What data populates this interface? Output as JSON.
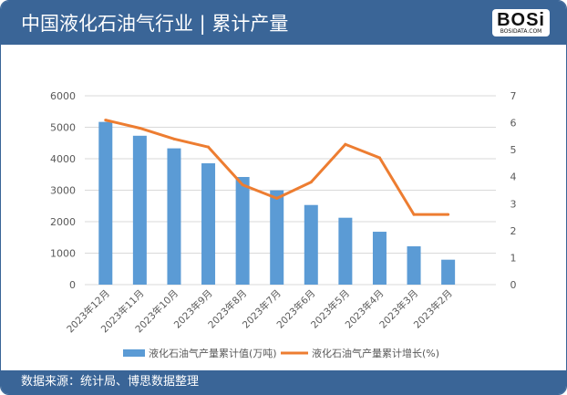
{
  "header": {
    "title": "中国液化石油气行业 | 累计产量",
    "logo_text": "BOSi",
    "logo_sub": "BOSIDATA.COM"
  },
  "footer": {
    "source": "数据来源：统计局、博思数据整理"
  },
  "chart_data": {
    "type": "bar",
    "title": "中国液化石油气行业 | 累计产量",
    "categories": [
      "2023年12月",
      "2023年11月",
      "2023年10月",
      "2023年9月",
      "2023年8月",
      "2023年7月",
      "2023年6月",
      "2023年5月",
      "2023年4月",
      "2023年3月",
      "2023年2月"
    ],
    "series": [
      {
        "name": "液化石油气产量累计值(万吨)",
        "type": "bar",
        "axis": "left",
        "color": "#5b9bd5",
        "values": [
          5170,
          4730,
          4330,
          3855,
          3420,
          2995,
          2530,
          2125,
          1680,
          1217,
          792
        ]
      },
      {
        "name": "液化石油气产量累计增长(%)",
        "type": "line",
        "axis": "right",
        "color": "#ed7d31",
        "values": [
          6.1,
          5.8,
          5.4,
          5.1,
          3.7,
          3.2,
          3.8,
          5.2,
          4.7,
          2.6,
          2.6
        ]
      }
    ],
    "ylim": [
      0,
      6000
    ],
    "yticks": [
      "0",
      "1000",
      "2000",
      "3000",
      "4000",
      "5000",
      "6000"
    ],
    "y2lim": [
      0,
      7
    ],
    "y2ticks": [
      "0",
      "1",
      "2",
      "3",
      "4",
      "5",
      "6",
      "7"
    ],
    "grid": true,
    "legend": "bottom"
  }
}
